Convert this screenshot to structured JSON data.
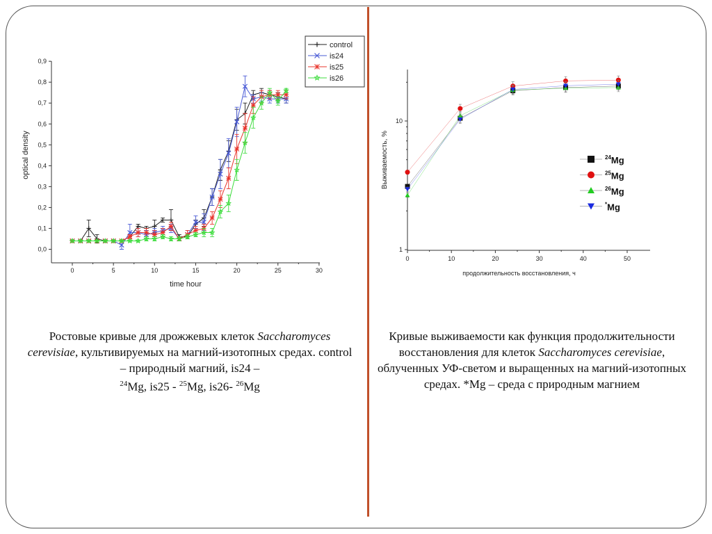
{
  "chart_data": [
    {
      "type": "line",
      "xlabel": "time hour",
      "ylabel": "optical density",
      "xlim": [
        -2,
        30
      ],
      "ylim": [
        -0.07,
        0.9
      ],
      "xticks": [
        "0",
        "5",
        "10",
        "15",
        "20",
        "25",
        "30"
      ],
      "yticks": [
        "0,0",
        "0,1",
        "0,2",
        "0,3",
        "0,4",
        "0,5",
        "0,6",
        "0,7",
        "0,8",
        "0,9"
      ],
      "legend_position": "top-right",
      "x": [
        0,
        1,
        2,
        3,
        4,
        5,
        6,
        7,
        8,
        9,
        10,
        11,
        12,
        13,
        14,
        15,
        16,
        17,
        18,
        19,
        20,
        21,
        22,
        23,
        24,
        25,
        26
      ],
      "series": [
        {
          "name": "control",
          "color": "#222222",
          "marker": "plus",
          "values": [
            0.04,
            0.04,
            0.1,
            0.05,
            0.04,
            0.04,
            0.04,
            0.06,
            0.11,
            0.1,
            0.11,
            0.14,
            0.14,
            0.06,
            0.06,
            0.12,
            0.15,
            0.25,
            0.38,
            0.47,
            0.62,
            0.65,
            0.74,
            0.75,
            0.74,
            0.73,
            0.72
          ],
          "errors": [
            0.005,
            0.005,
            0.04,
            0.02,
            0.005,
            0.005,
            0.005,
            0.01,
            0.01,
            0.01,
            0.03,
            0.01,
            0.05,
            0.01,
            0.01,
            0.02,
            0.04,
            0.04,
            0.05,
            0.05,
            0.05,
            0.05,
            0.02,
            0.02,
            0.02,
            0.02,
            0.02
          ]
        },
        {
          "name": "is24",
          "color": "#4a5bd6",
          "marker": "x",
          "values": [
            0.04,
            0.04,
            0.04,
            0.04,
            0.04,
            0.04,
            0.02,
            0.08,
            0.08,
            0.07,
            0.08,
            0.09,
            0.1,
            0.05,
            0.07,
            0.13,
            0.13,
            0.25,
            0.36,
            0.46,
            0.61,
            0.78,
            0.72,
            0.73,
            0.72,
            0.72,
            0.72
          ],
          "errors": [
            0.005,
            0.005,
            0.005,
            0.005,
            0.005,
            0.005,
            0.02,
            0.04,
            0.02,
            0.02,
            0.02,
            0.02,
            0.02,
            0.01,
            0.02,
            0.03,
            0.04,
            0.04,
            0.07,
            0.07,
            0.07,
            0.05,
            0.02,
            0.02,
            0.02,
            0.02,
            0.02
          ]
        },
        {
          "name": "is25",
          "color": "#e8342b",
          "marker": "asterisk",
          "values": [
            0.04,
            0.04,
            0.04,
            0.04,
            0.04,
            0.04,
            0.04,
            0.06,
            0.08,
            0.08,
            0.07,
            0.08,
            0.11,
            0.05,
            0.07,
            0.09,
            0.1,
            0.15,
            0.24,
            0.34,
            0.48,
            0.58,
            0.69,
            0.73,
            0.74,
            0.74,
            0.74
          ],
          "errors": [
            0.005,
            0.005,
            0.005,
            0.005,
            0.005,
            0.005,
            0.005,
            0.01,
            0.02,
            0.02,
            0.02,
            0.02,
            0.02,
            0.01,
            0.02,
            0.02,
            0.02,
            0.03,
            0.04,
            0.05,
            0.07,
            0.07,
            0.04,
            0.03,
            0.02,
            0.02,
            0.02
          ]
        },
        {
          "name": "is26",
          "color": "#3ddc3d",
          "marker": "star",
          "values": [
            0.04,
            0.04,
            0.04,
            0.04,
            0.04,
            0.04,
            0.04,
            0.04,
            0.04,
            0.05,
            0.05,
            0.06,
            0.05,
            0.05,
            0.06,
            0.07,
            0.08,
            0.08,
            0.18,
            0.22,
            0.38,
            0.51,
            0.63,
            0.7,
            0.75,
            0.71,
            0.76
          ],
          "errors": [
            0.005,
            0.005,
            0.005,
            0.005,
            0.005,
            0.005,
            0.005,
            0.005,
            0.005,
            0.01,
            0.01,
            0.01,
            0.01,
            0.01,
            0.01,
            0.01,
            0.02,
            0.02,
            0.03,
            0.04,
            0.05,
            0.05,
            0.05,
            0.03,
            0.02,
            0.02,
            0.01
          ]
        }
      ]
    },
    {
      "type": "line",
      "xlabel": "продолжительность восстановления, ч",
      "ylabel": "Выживаемость, %",
      "log_y": true,
      "xlim": [
        0,
        55
      ],
      "ylim": [
        1,
        28
      ],
      "xticks": [
        "0",
        "10",
        "20",
        "30",
        "40",
        "50"
      ],
      "yticks": [
        "1",
        "10"
      ],
      "legend_position": "right-middle",
      "x": [
        0,
        12,
        24,
        36,
        48
      ],
      "series": [
        {
          "name_sup": "24",
          "name": "Mg",
          "color": "#111111",
          "marker": "square",
          "values": [
            3.1,
            10.5,
            17.2,
            18.2,
            18.7
          ]
        },
        {
          "name_sup": "25",
          "name": "Mg",
          "color": "#e01010",
          "marker": "circle",
          "values": [
            4.0,
            12.5,
            18.7,
            20.5,
            20.8
          ]
        },
        {
          "name_sup": "26",
          "name": "Mg",
          "color": "#22cc22",
          "marker": "triangle-up",
          "values": [
            2.65,
            11.0,
            17.4,
            18.0,
            18.2
          ]
        },
        {
          "name_sup": "*",
          "name": "Mg",
          "color": "#1a2ae0",
          "marker": "triangle-down",
          "values": [
            2.95,
            10.3,
            17.6,
            18.8,
            19.3
          ]
        }
      ]
    }
  ],
  "captions": {
    "left": {
      "part1": "Ростовые кривые для дрожжевых клеток ",
      "species": "Saccharomyces cerevisiae",
      "part2": ", культивируемых на магний-изотопных средах. control – природный магний, is24 –",
      "sup24": "24",
      "mg1": "Mg, is25 - ",
      "sup25": "25",
      "mg2": "Mg, is26- ",
      "sup26": "26",
      "mg3": "Mg"
    },
    "right": {
      "part1": "Кривые выживаемости как функция продолжительности восстановления для клеток ",
      "species": "Saccharomyces cerevisiae",
      "part2": ", облученных УФ-светом и выращенных на магний-изотопных средах. *Mg – среда с природным магнием"
    }
  },
  "colors": {
    "divider": "#c0502a",
    "frame": "#555555"
  }
}
